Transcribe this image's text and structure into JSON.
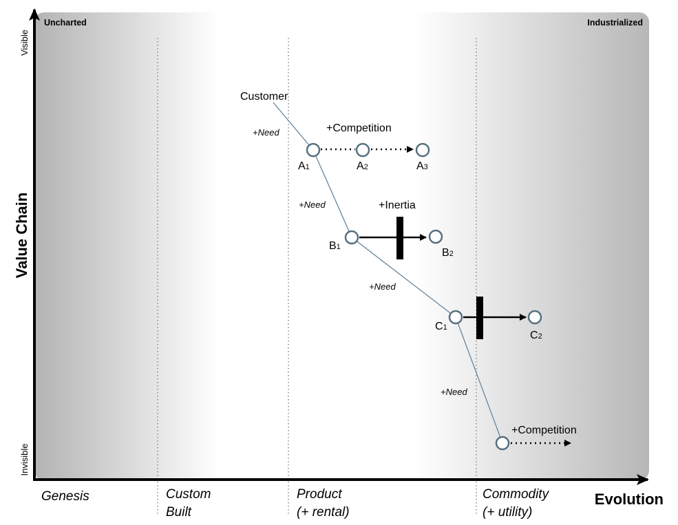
{
  "corners": {
    "left": "Uncharted",
    "right": "Industrialized"
  },
  "y_axis": {
    "title": "Value Chain",
    "top": "Visible",
    "bottom": "Invisible"
  },
  "x_axis": {
    "title": "Evolution"
  },
  "stages": [
    {
      "line1": "Genesis",
      "line2": ""
    },
    {
      "line1": "Custom",
      "line2": "Built"
    },
    {
      "line1": "Product",
      "line2": "(+ rental)"
    },
    {
      "line1": "Commodity",
      "line2": "(+ utility)"
    }
  ],
  "customer": "Customer",
  "need_label": "+Need",
  "nodes": {
    "a1": {
      "letter": "A",
      "sub": "1"
    },
    "a2": {
      "letter": "A",
      "sub": "2"
    },
    "a3": {
      "letter": "A",
      "sub": "3"
    },
    "b1": {
      "letter": "B",
      "sub": "1"
    },
    "b2": {
      "letter": "B",
      "sub": "2"
    },
    "c1": {
      "letter": "C",
      "sub": "1"
    },
    "c2": {
      "letter": "C",
      "sub": "2"
    }
  },
  "annotations": {
    "competition_top": "+Competition",
    "inertia": "+Inertia",
    "competition_bottom": "+Competition"
  },
  "colors": {
    "node_stroke": "#55707f",
    "link": "#5d7d95",
    "background_gray": "#b9b9b9",
    "arrow": "#000000"
  }
}
